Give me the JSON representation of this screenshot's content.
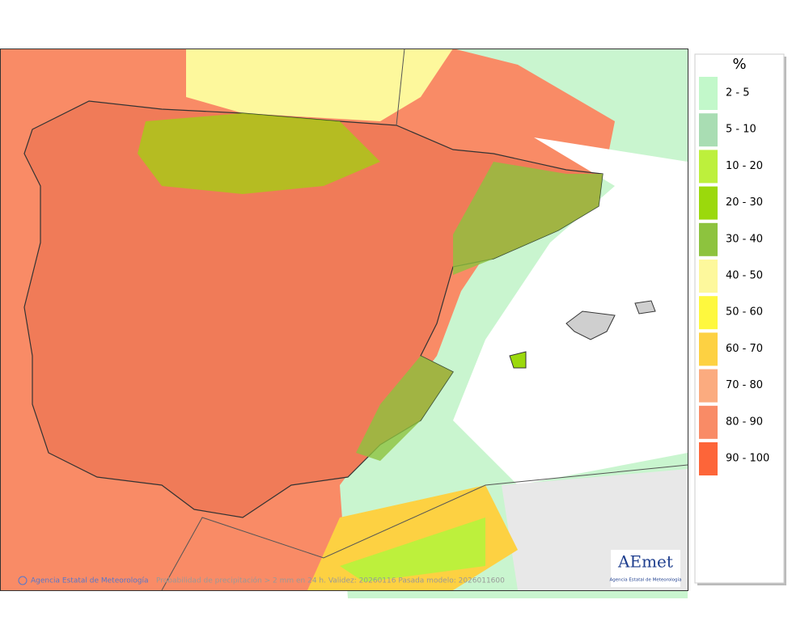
{
  "legend": {
    "title": "%",
    "items": [
      {
        "label": "2 - 5",
        "color": "#c2f8ca"
      },
      {
        "label": "5 - 10",
        "color": "#a9ddb3"
      },
      {
        "label": "10 - 20",
        "color": "#bdf03c"
      },
      {
        "label": "20 - 30",
        "color": "#9bd90c"
      },
      {
        "label": "30 - 40",
        "color": "#8dc33e"
      },
      {
        "label": "40 - 50",
        "color": "#fdf89c"
      },
      {
        "label": "50 - 60",
        "color": "#fef83e"
      },
      {
        "label": "60 - 70",
        "color": "#fdd142"
      },
      {
        "label": "70 - 80",
        "color": "#fbab7f"
      },
      {
        "label": "80 - 90",
        "color": "#f98b66"
      },
      {
        "label": "90 - 100",
        "color": "#fd6539"
      }
    ]
  },
  "footer": {
    "agency": "Agencia Estatal de Meteorología",
    "caption": "Probabilidad de precipitación > 2 mm en 24 h. Validez: 20260116 Pasada modelo: 2026011600"
  },
  "logo": {
    "brand": "AEmet",
    "subtitle": "Agencia Estatal de Meteorología"
  }
}
